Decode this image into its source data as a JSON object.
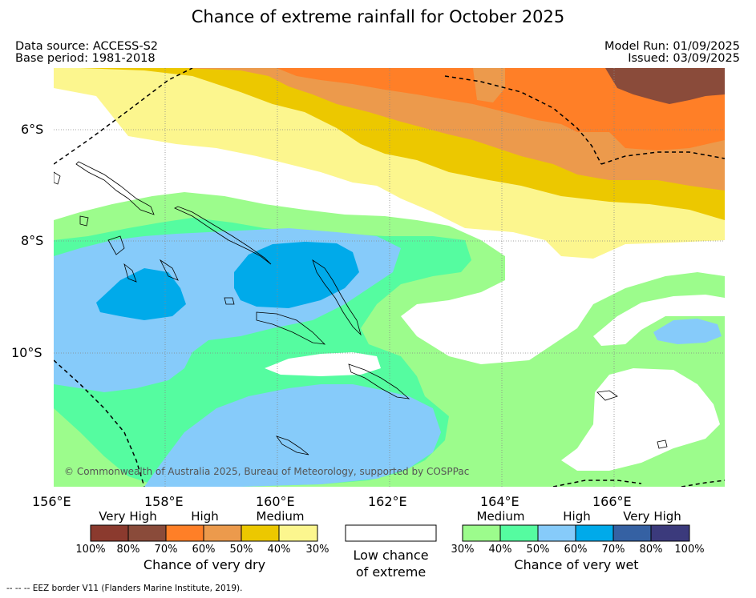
{
  "title": "Chance of extreme rainfall for October 2025",
  "meta": {
    "data_source": "Data source: ACCESS-S2",
    "base_period": "Base period: 1981-2018",
    "model_run": "Model Run: 01/09/2025",
    "issued": "Issued: 03/09/2025"
  },
  "axes": {
    "lat": [
      "6°S",
      "8°S",
      "10°S"
    ],
    "lon": [
      "156°E",
      "158°E",
      "160°E",
      "162°E",
      "164°E",
      "166°E"
    ]
  },
  "copyright": "© Commonwealth of Australia 2025, Bureau of Meteorology, supported by COSPPac",
  "legend": {
    "dry": {
      "levels": [
        "Very High",
        "High",
        "Medium"
      ],
      "ticks": [
        "100%",
        "80%",
        "70%",
        "60%",
        "50%",
        "40%",
        "30%"
      ],
      "colors": [
        "#8b3a2e",
        "#8a4b3a",
        "#ff7f27",
        "#ec9a4c",
        "#ecc800",
        "#fcf68e"
      ],
      "caption": "Chance of very dry"
    },
    "low": {
      "line1": "Low chance",
      "line2": "of extreme"
    },
    "wet": {
      "levels": [
        "Medium",
        "High",
        "Very High"
      ],
      "ticks": [
        "30%",
        "40%",
        "50%",
        "60%",
        "70%",
        "80%",
        "100%"
      ],
      "colors": [
        "#9cfc8c",
        "#55fca0",
        "#86cbfa",
        "#00aaea",
        "#3561a3",
        "#3b3a7c"
      ],
      "caption": "Chance of very wet"
    }
  },
  "footnote": "--  --  -- EEZ border V11 (Flanders Marine Institute, 2019)."
}
